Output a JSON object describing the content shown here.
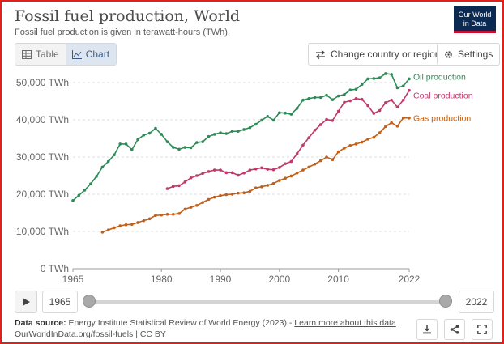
{
  "header": {
    "title": "Fossil fuel production, World",
    "subtitle": "Fossil fuel production is given in terawatt-hours (TWh).",
    "logo_line1": "Our World",
    "logo_line2": "in Data"
  },
  "toolbar": {
    "table_label": "Table",
    "chart_label": "Chart",
    "change_label": "Change country or region",
    "settings_label": "Settings"
  },
  "timeline": {
    "start_year": "1965",
    "end_year": "2022"
  },
  "footer": {
    "source_label": "Data source:",
    "source_text": "Energy Institute Statistical Review of World Energy (2023) -",
    "learn_more": "Learn more about this data",
    "url_line": "OurWorldInData.org/fossil-fuels | CC BY"
  },
  "colors": {
    "oil": "#2e8b57",
    "coal": "#c0396b",
    "gas": "#c0601a"
  },
  "icons": [
    "table-icon",
    "chart-icon",
    "swap-icon",
    "gear-icon",
    "play-icon",
    "download-icon",
    "share-icon",
    "fullscreen-icon"
  ],
  "chart_data": {
    "type": "line",
    "ylim": [
      0,
      50000
    ],
    "xlim": [
      1965,
      2022
    ],
    "yticks": [
      0,
      10000,
      20000,
      30000,
      40000,
      50000
    ],
    "ytick_labels": [
      "0 TWh",
      "10,000 TWh",
      "20,000 TWh",
      "30,000 TWh",
      "40,000 TWh",
      "50,000 TWh"
    ],
    "xticks": [
      1965,
      1980,
      1990,
      2000,
      2010,
      2022
    ],
    "xtick_labels": [
      "1965",
      "1980",
      "1990",
      "2000",
      "2010",
      "2022"
    ],
    "grid": "horizontal",
    "legend": "line-end labels",
    "series": [
      {
        "name": "Oil production",
        "color": "#2e8b57",
        "x": [
          1965,
          1966,
          1967,
          1968,
          1969,
          1970,
          1971,
          1972,
          1973,
          1974,
          1975,
          1976,
          1977,
          1978,
          1979,
          1980,
          1981,
          1982,
          1983,
          1984,
          1985,
          1986,
          1987,
          1988,
          1989,
          1990,
          1991,
          1992,
          1993,
          1994,
          1995,
          1996,
          1997,
          1998,
          1999,
          2000,
          2001,
          2002,
          2003,
          2004,
          2005,
          2006,
          2007,
          2008,
          2009,
          2010,
          2011,
          2012,
          2013,
          2014,
          2015,
          2016,
          2017,
          2018,
          2019,
          2020,
          2021,
          2022
        ],
        "values": [
          18300,
          19700,
          21100,
          22800,
          24800,
          27300,
          28800,
          30600,
          33500,
          33500,
          32000,
          34700,
          35900,
          36400,
          37700,
          36100,
          34100,
          32600,
          32100,
          32600,
          32500,
          33900,
          34100,
          35500,
          36100,
          36500,
          36300,
          36900,
          36900,
          37400,
          37900,
          38800,
          39900,
          40900,
          39900,
          41900,
          41800,
          41500,
          43100,
          45300,
          45700,
          46000,
          46000,
          46600,
          45400,
          46400,
          46800,
          48000,
          48200,
          49500,
          51000,
          51100,
          51300,
          52400,
          52200,
          48600,
          49100,
          51000
        ]
      },
      {
        "name": "Coal production",
        "color": "#c0396b",
        "x": [
          1981,
          1982,
          1983,
          1984,
          1985,
          1986,
          1987,
          1988,
          1989,
          1990,
          1991,
          1992,
          1993,
          1994,
          1995,
          1996,
          1997,
          1998,
          1999,
          2000,
          2001,
          2002,
          2003,
          2004,
          2005,
          2006,
          2007,
          2008,
          2009,
          2010,
          2011,
          2012,
          2013,
          2014,
          2015,
          2016,
          2017,
          2018,
          2019,
          2020,
          2021,
          2022
        ],
        "values": [
          21500,
          22100,
          22300,
          23300,
          24400,
          25000,
          25600,
          26100,
          26500,
          26500,
          25800,
          25800,
          25100,
          25700,
          26500,
          26800,
          27100,
          26700,
          26600,
          27200,
          28200,
          28800,
          30900,
          33200,
          35200,
          37200,
          38700,
          40100,
          39800,
          42300,
          44700,
          45100,
          45700,
          45500,
          43800,
          41700,
          42500,
          44600,
          45300,
          43400,
          45300,
          47900
        ]
      },
      {
        "name": "Gas production",
        "color": "#c0601a",
        "x": [
          1970,
          1971,
          1972,
          1973,
          1974,
          1975,
          1976,
          1977,
          1978,
          1979,
          1980,
          1981,
          1982,
          1983,
          1984,
          1985,
          1986,
          1987,
          1988,
          1989,
          1990,
          1991,
          1992,
          1993,
          1994,
          1995,
          1996,
          1997,
          1998,
          1999,
          2000,
          2001,
          2002,
          2003,
          2004,
          2005,
          2006,
          2007,
          2008,
          2009,
          2010,
          2011,
          2012,
          2013,
          2014,
          2015,
          2016,
          2017,
          2018,
          2019,
          2020,
          2021,
          2022
        ],
        "values": [
          9800,
          10400,
          11000,
          11500,
          11800,
          11900,
          12400,
          12900,
          13400,
          14300,
          14400,
          14600,
          14600,
          14800,
          16000,
          16500,
          17000,
          17800,
          18600,
          19200,
          19600,
          19900,
          20000,
          20300,
          20400,
          20800,
          21700,
          22000,
          22400,
          22900,
          23700,
          24300,
          24900,
          25700,
          26500,
          27300,
          28100,
          29000,
          30000,
          29300,
          31400,
          32400,
          33100,
          33500,
          34000,
          34800,
          35300,
          36500,
          38200,
          39200,
          38300,
          40500,
          40500
        ]
      }
    ]
  }
}
